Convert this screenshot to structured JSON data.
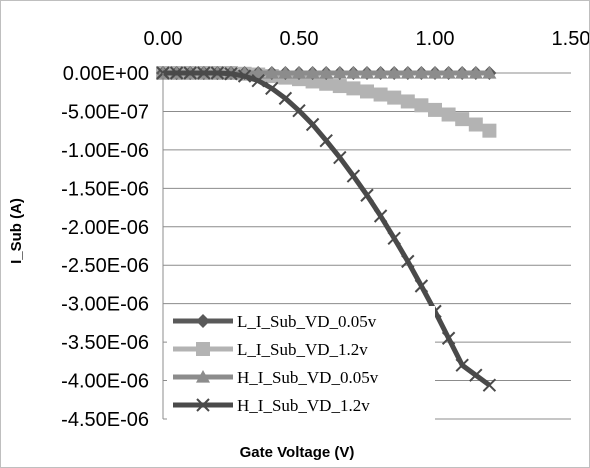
{
  "chart_data": {
    "type": "scatter",
    "title": "",
    "xlabel": "Gate Voltage (V)",
    "ylabel": "I_Sub (A)",
    "xlim": [
      0,
      1.5
    ],
    "ylim": [
      -4.5e-06,
      0
    ],
    "x_ticks": [
      "0.00",
      "0.50",
      "1.00",
      "1.50"
    ],
    "x_tick_values": [
      0,
      0.5,
      1.0,
      1.5
    ],
    "y_ticks": [
      "0.00E+00",
      "-5.00E-07",
      "-1.00E-06",
      "-1.50E-06",
      "-2.00E-06",
      "-2.50E-06",
      "-3.00E-06",
      "-3.50E-06",
      "-4.00E-06",
      "-4.50E-06"
    ],
    "y_tick_values": [
      0,
      -5e-07,
      -1e-06,
      -1.5e-06,
      -2e-06,
      -2.5e-06,
      -3e-06,
      -3.5e-06,
      -4e-06,
      -4.5e-06
    ],
    "x_axis_position": "top",
    "grid": "horizontal",
    "legend_position": "bottom-left",
    "series": [
      {
        "name": "L_I_Sub_VD_0.05v",
        "color": "#595959",
        "marker": "diamond",
        "x": [
          0,
          0.05,
          0.1,
          0.15,
          0.2,
          0.25,
          0.3,
          0.35,
          0.4,
          0.45,
          0.5,
          0.55,
          0.6,
          0.65,
          0.7,
          0.75,
          0.8,
          0.85,
          0.9,
          0.95,
          1.0,
          1.05,
          1.1,
          1.15,
          1.2
        ],
        "y": [
          0,
          0,
          0,
          0,
          0,
          0,
          0,
          0,
          0,
          0,
          0,
          0,
          0,
          0,
          0,
          0,
          0,
          0,
          0,
          0,
          0,
          0,
          0,
          0,
          0
        ]
      },
      {
        "name": "L_I_Sub_VD_1.2v",
        "color": "#b3b3b3",
        "marker": "square",
        "x": [
          0,
          0.05,
          0.1,
          0.15,
          0.2,
          0.25,
          0.3,
          0.35,
          0.4,
          0.45,
          0.5,
          0.55,
          0.6,
          0.65,
          0.7,
          0.75,
          0.8,
          0.85,
          0.9,
          0.95,
          1.0,
          1.05,
          1.1,
          1.15,
          1.2
        ],
        "y": [
          0,
          0,
          0,
          0,
          0,
          0,
          -1e-08,
          -2e-08,
          -4e-08,
          -6e-08,
          -8e-08,
          -1.1e-07,
          -1.4e-07,
          -1.7e-07,
          -2e-07,
          -2.4e-07,
          -2.8e-07,
          -3.2e-07,
          -3.7e-07,
          -4.2e-07,
          -4.8e-07,
          -5.4e-07,
          -6e-07,
          -6.7e-07,
          -7.5e-07
        ]
      },
      {
        "name": "H_I_Sub_VD_0.05v",
        "color": "#8c8c8c",
        "marker": "triangle",
        "x": [
          0,
          0.05,
          0.1,
          0.15,
          0.2,
          0.25,
          0.3,
          0.35,
          0.4,
          0.45,
          0.5,
          0.55,
          0.6,
          0.65,
          0.7,
          0.75,
          0.8,
          0.85,
          0.9,
          0.95,
          1.0,
          1.05,
          1.1,
          1.15,
          1.2
        ],
        "y": [
          0,
          0,
          0,
          0,
          0,
          0,
          0,
          0,
          0,
          0,
          0,
          0,
          0,
          0,
          0,
          0,
          0,
          0,
          0,
          0,
          0,
          0,
          0,
          0,
          0
        ]
      },
      {
        "name": "H_I_Sub_VD_1.2v",
        "color": "#4a4a4a",
        "marker": "x",
        "x": [
          0,
          0.05,
          0.1,
          0.15,
          0.2,
          0.25,
          0.3,
          0.35,
          0.4,
          0.45,
          0.5,
          0.55,
          0.6,
          0.65,
          0.7,
          0.75,
          0.8,
          0.85,
          0.9,
          0.95,
          1.0,
          1.05,
          1.1,
          1.15,
          1.2
        ],
        "y": [
          0,
          0,
          0,
          0,
          0,
          -1e-08,
          -4e-08,
          -1e-07,
          -2e-07,
          -3.3e-07,
          -4.9e-07,
          -6.7e-07,
          -8.8e-07,
          -1.1e-06,
          -1.34e-06,
          -1.59e-06,
          -1.86e-06,
          -2.15e-06,
          -2.45e-06,
          -2.77e-06,
          -3.1e-06,
          -3.45e-06,
          -3.8e-06,
          -3.93e-06,
          -4.06e-06
        ]
      }
    ]
  }
}
